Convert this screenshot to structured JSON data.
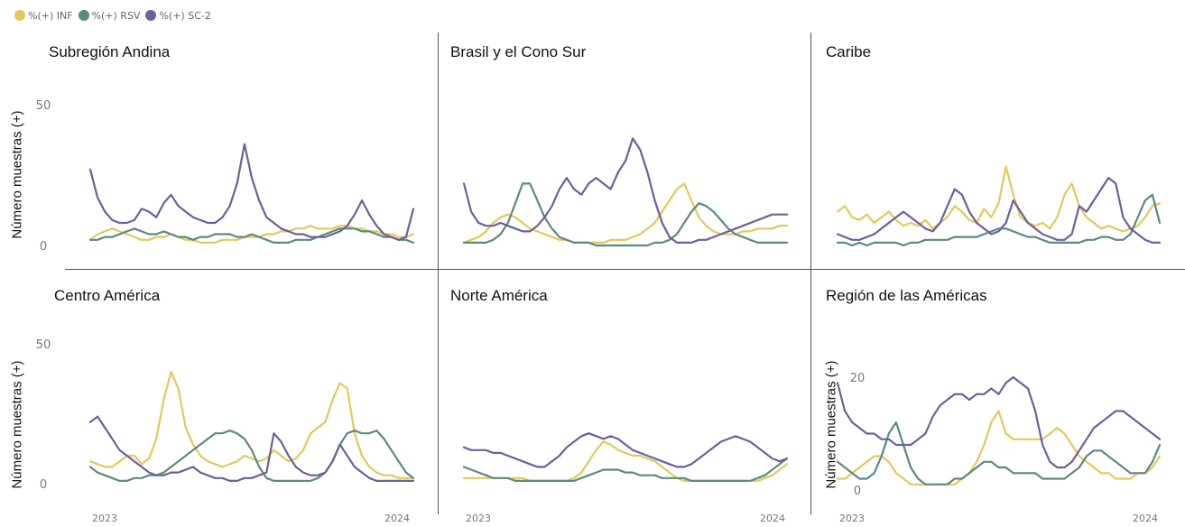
{
  "legend": [
    {
      "label": "%(+) INF",
      "color": "#e6c75a"
    },
    {
      "label": "%(+) RSV",
      "color": "#5b8a7e"
    },
    {
      "label": "%(+) SC-2",
      "color": "#6b5f9e"
    }
  ],
  "colors": {
    "inf": "#e6c75a",
    "rsv": "#5b8a7e",
    "sc2": "#6b5f9e"
  },
  "ylabel": "Número muestras (+)",
  "chart_data": [
    {
      "type": "line",
      "title": "Subregión Andina",
      "ylim": [
        0,
        50
      ],
      "yticks": [
        "0",
        "50"
      ],
      "xticks": [],
      "series": [
        {
          "name": "%(+) INF",
          "values": [
            2,
            4,
            5,
            6,
            5,
            4,
            3,
            2,
            2,
            3,
            3,
            4,
            3,
            2,
            2,
            1,
            1,
            1,
            2,
            2,
            2,
            3,
            3,
            3,
            4,
            4,
            5,
            5,
            6,
            6,
            7,
            6,
            6,
            6,
            7,
            7,
            6,
            6,
            5,
            5,
            4,
            4,
            3,
            3,
            4
          ]
        },
        {
          "name": "%(+) RSV",
          "values": [
            2,
            2,
            3,
            3,
            4,
            5,
            6,
            5,
            4,
            4,
            5,
            4,
            3,
            3,
            2,
            3,
            3,
            4,
            4,
            4,
            3,
            3,
            4,
            3,
            2,
            1,
            1,
            1,
            2,
            2,
            2,
            3,
            4,
            5,
            6,
            6,
            6,
            5,
            5,
            4,
            3,
            3,
            2,
            2,
            1
          ]
        },
        {
          "name": "%(+) SC-2",
          "values": [
            27,
            17,
            12,
            9,
            8,
            8,
            9,
            13,
            12,
            10,
            15,
            18,
            14,
            12,
            10,
            9,
            8,
            8,
            10,
            14,
            22,
            36,
            24,
            16,
            10,
            8,
            6,
            5,
            4,
            4,
            3,
            3,
            3,
            4,
            5,
            7,
            11,
            16,
            11,
            7,
            4,
            3,
            2,
            3,
            13
          ]
        }
      ]
    },
    {
      "type": "line",
      "title": "Brasil y el Cono Sur",
      "ylim": [
        0,
        50
      ],
      "yticks": [],
      "xticks": [],
      "series": [
        {
          "name": "%(+) INF",
          "values": [
            1,
            2,
            3,
            5,
            8,
            10,
            11,
            10,
            8,
            6,
            5,
            4,
            3,
            2,
            2,
            1,
            1,
            1,
            1,
            1,
            2,
            2,
            2,
            3,
            4,
            6,
            8,
            12,
            16,
            20,
            22,
            16,
            10,
            7,
            5,
            4,
            4,
            4,
            5,
            5,
            6,
            6,
            6,
            7,
            7
          ]
        },
        {
          "name": "%(+) RSV",
          "values": [
            1,
            1,
            1,
            1,
            2,
            4,
            8,
            15,
            22,
            22,
            16,
            10,
            6,
            3,
            2,
            1,
            1,
            1,
            0,
            0,
            0,
            0,
            0,
            0,
            0,
            0,
            1,
            1,
            2,
            4,
            8,
            12,
            15,
            14,
            12,
            9,
            6,
            4,
            3,
            2,
            1,
            1,
            1,
            1,
            1
          ]
        },
        {
          "name": "%(+) SC-2",
          "values": [
            22,
            12,
            8,
            7,
            7,
            8,
            7,
            6,
            5,
            5,
            7,
            10,
            14,
            20,
            24,
            20,
            18,
            22,
            24,
            22,
            20,
            26,
            30,
            38,
            34,
            26,
            16,
            8,
            3,
            1,
            1,
            1,
            2,
            2,
            3,
            4,
            5,
            6,
            7,
            8,
            9,
            10,
            11,
            11,
            11
          ]
        }
      ]
    },
    {
      "type": "line",
      "title": "Caribe",
      "ylim": [
        0,
        50
      ],
      "yticks": [],
      "xticks": [],
      "series": [
        {
          "name": "%(+) INF",
          "values": [
            12,
            14,
            10,
            9,
            11,
            8,
            10,
            12,
            9,
            7,
            8,
            7,
            9,
            6,
            8,
            10,
            14,
            12,
            9,
            8,
            13,
            10,
            15,
            28,
            18,
            10,
            8,
            7,
            8,
            6,
            10,
            18,
            22,
            14,
            10,
            8,
            6,
            7,
            6,
            5,
            6,
            7,
            10,
            14,
            15
          ]
        },
        {
          "name": "%(+) RSV",
          "values": [
            1,
            1,
            0,
            1,
            0,
            1,
            1,
            1,
            1,
            0,
            1,
            1,
            2,
            2,
            2,
            2,
            3,
            3,
            3,
            3,
            4,
            5,
            6,
            6,
            5,
            4,
            3,
            3,
            2,
            1,
            1,
            1,
            1,
            1,
            2,
            2,
            3,
            3,
            2,
            2,
            4,
            10,
            16,
            18,
            8
          ]
        },
        {
          "name": "%(+) SC-2",
          "values": [
            4,
            3,
            2,
            2,
            3,
            4,
            6,
            8,
            10,
            12,
            10,
            8,
            6,
            5,
            8,
            14,
            20,
            18,
            12,
            8,
            6,
            4,
            5,
            8,
            16,
            12,
            8,
            6,
            4,
            3,
            2,
            2,
            4,
            14,
            12,
            16,
            20,
            24,
            22,
            10,
            6,
            4,
            2,
            1,
            1
          ]
        }
      ]
    },
    {
      "type": "line",
      "title": "Centro América",
      "ylim": [
        0,
        50
      ],
      "yticks": [
        "0",
        "50"
      ],
      "xticks": [
        "2023",
        "2024"
      ],
      "series": [
        {
          "name": "%(+) INF",
          "values": [
            8,
            7,
            6,
            6,
            8,
            10,
            10,
            7,
            9,
            16,
            30,
            40,
            34,
            20,
            14,
            10,
            8,
            7,
            6,
            7,
            8,
            10,
            9,
            8,
            9,
            12,
            10,
            8,
            9,
            12,
            18,
            20,
            22,
            30,
            36,
            34,
            18,
            10,
            6,
            4,
            3,
            3,
            2,
            2,
            2
          ]
        },
        {
          "name": "%(+) RSV",
          "values": [
            6,
            4,
            3,
            2,
            1,
            1,
            2,
            2,
            3,
            3,
            4,
            6,
            8,
            10,
            12,
            14,
            16,
            18,
            18,
            19,
            18,
            16,
            12,
            6,
            2,
            1,
            1,
            1,
            1,
            1,
            1,
            2,
            4,
            8,
            14,
            18,
            19,
            18,
            18,
            19,
            16,
            12,
            8,
            4,
            2
          ]
        },
        {
          "name": "%(+) SC-2",
          "values": [
            22,
            24,
            20,
            16,
            12,
            10,
            8,
            6,
            4,
            3,
            3,
            4,
            4,
            5,
            6,
            4,
            3,
            2,
            2,
            1,
            1,
            2,
            2,
            3,
            4,
            18,
            15,
            10,
            6,
            4,
            3,
            3,
            4,
            8,
            14,
            10,
            6,
            4,
            2,
            1,
            1,
            1,
            1,
            1,
            1
          ]
        }
      ]
    },
    {
      "type": "line",
      "title": "Norte América",
      "ylim": [
        0,
        50
      ],
      "yticks": [],
      "xticks": [
        "2023",
        "2024"
      ],
      "series": [
        {
          "name": "%(+) INF",
          "values": [
            2,
            2,
            2,
            2,
            2,
            2,
            2,
            2,
            2,
            1,
            1,
            1,
            1,
            1,
            1,
            2,
            4,
            8,
            12,
            15,
            14,
            12,
            11,
            10,
            10,
            9,
            8,
            6,
            4,
            2,
            1,
            1,
            1,
            1,
            1,
            1,
            1,
            1,
            1,
            1,
            1,
            2,
            3,
            5,
            7
          ]
        },
        {
          "name": "%(+) RSV",
          "values": [
            6,
            5,
            4,
            3,
            2,
            2,
            2,
            1,
            1,
            1,
            1,
            1,
            1,
            1,
            1,
            1,
            2,
            3,
            4,
            5,
            5,
            5,
            4,
            4,
            3,
            3,
            3,
            2,
            2,
            2,
            2,
            1,
            1,
            1,
            1,
            1,
            1,
            1,
            1,
            1,
            2,
            3,
            5,
            7,
            9
          ]
        },
        {
          "name": "%(+) SC-2",
          "values": [
            13,
            12,
            12,
            12,
            11,
            11,
            10,
            9,
            8,
            7,
            6,
            6,
            8,
            10,
            13,
            15,
            17,
            18,
            17,
            16,
            17,
            16,
            14,
            12,
            11,
            10,
            9,
            8,
            7,
            6,
            6,
            7,
            9,
            11,
            13,
            15,
            16,
            17,
            16,
            15,
            13,
            11,
            9,
            8,
            9
          ]
        }
      ]
    },
    {
      "type": "line",
      "title": "Región de las Américas",
      "ylim": [
        0,
        20
      ],
      "yticks": [
        "0",
        "20"
      ],
      "xticks": [
        "2023",
        "2024"
      ],
      "series": [
        {
          "name": "%(+) INF",
          "values": [
            2,
            2,
            3,
            4,
            5,
            6,
            6,
            5,
            3,
            2,
            1,
            1,
            1,
            1,
            1,
            1,
            1,
            2,
            3,
            5,
            8,
            12,
            14,
            10,
            9,
            9,
            9,
            9,
            9,
            10,
            11,
            10,
            8,
            6,
            5,
            4,
            3,
            3,
            2,
            2,
            2,
            3,
            3,
            4,
            6
          ]
        },
        {
          "name": "%(+) RSV",
          "values": [
            5,
            4,
            3,
            2,
            2,
            3,
            6,
            10,
            12,
            8,
            4,
            2,
            1,
            1,
            1,
            1,
            2,
            2,
            3,
            4,
            5,
            5,
            4,
            4,
            3,
            3,
            3,
            3,
            2,
            2,
            2,
            2,
            3,
            4,
            6,
            7,
            7,
            6,
            5,
            4,
            3,
            3,
            3,
            5,
            8
          ]
        },
        {
          "name": "%(+) SC-2",
          "values": [
            19,
            14,
            12,
            11,
            10,
            10,
            9,
            9,
            8,
            8,
            8,
            9,
            10,
            13,
            15,
            16,
            17,
            17,
            16,
            17,
            17,
            18,
            17,
            19,
            20,
            19,
            18,
            14,
            8,
            5,
            4,
            4,
            5,
            7,
            9,
            11,
            12,
            13,
            14,
            14,
            13,
            12,
            11,
            10,
            9
          ]
        }
      ]
    }
  ]
}
